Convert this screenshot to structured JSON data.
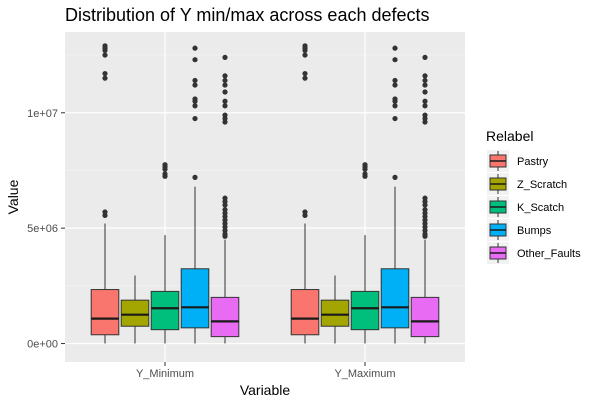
{
  "chart_data": {
    "type": "boxplot",
    "title": "Distribution of Y min/max across each defects",
    "xlabel": "Variable",
    "ylabel": "Value",
    "ylim": [
      -800000,
      13500000
    ],
    "categories": [
      "Y_Minimum",
      "Y_Maximum"
    ],
    "y_ticks": [
      {
        "value": 0,
        "label": "0e+00"
      },
      {
        "value": 5000000,
        "label": "5e+06"
      },
      {
        "value": 10000000,
        "label": "1e+07"
      }
    ],
    "legend": {
      "title": "Relabel",
      "position": "right"
    },
    "grid": true,
    "series": [
      {
        "name": "Pastry",
        "color": "#F8766D",
        "boxes": [
          {
            "min": 0,
            "q1": 380000,
            "median": 1080000,
            "q3": 2340000,
            "max": 5200000,
            "outliers": [
              5550000,
              5700000,
              11500000,
              11700000,
              12500000,
              12700000,
              12800000,
              12900000
            ]
          },
          {
            "min": 0,
            "q1": 380000,
            "median": 1080000,
            "q3": 2340000,
            "max": 5200000,
            "outliers": [
              5550000,
              5700000,
              11500000,
              11700000,
              12500000,
              12700000,
              12800000,
              12900000
            ]
          }
        ]
      },
      {
        "name": "Z_Scratch",
        "color": "#A3A500",
        "boxes": [
          {
            "min": 0,
            "q1": 750000,
            "median": 1250000,
            "q3": 1880000,
            "max": 2950000,
            "outliers": []
          },
          {
            "min": 0,
            "q1": 750000,
            "median": 1250000,
            "q3": 1880000,
            "max": 2950000,
            "outliers": []
          }
        ]
      },
      {
        "name": "K_Scatch",
        "color": "#00BF7D",
        "boxes": [
          {
            "min": 0,
            "q1": 600000,
            "median": 1530000,
            "q3": 2260000,
            "max": 4700000,
            "outliers": [
              7250000,
              7350000,
              7550000,
              7650000,
              7750000
            ]
          },
          {
            "min": 0,
            "q1": 600000,
            "median": 1530000,
            "q3": 2260000,
            "max": 4700000,
            "outliers": [
              7250000,
              7350000,
              7550000,
              7650000,
              7750000
            ]
          }
        ]
      },
      {
        "name": "Bumps",
        "color": "#00B0F6",
        "boxes": [
          {
            "min": 0,
            "q1": 680000,
            "median": 1570000,
            "q3": 3240000,
            "max": 6800000,
            "outliers": [
              7200000,
              9750000,
              10300000,
              10500000,
              10600000,
              11200000,
              11400000,
              12300000,
              12800000
            ]
          },
          {
            "min": 0,
            "q1": 680000,
            "median": 1570000,
            "q3": 3240000,
            "max": 6800000,
            "outliers": [
              7200000,
              9750000,
              10300000,
              10500000,
              10600000,
              11200000,
              11400000,
              12300000,
              12800000
            ]
          }
        ]
      },
      {
        "name": "Other_Faults",
        "color": "#E76BF3",
        "boxes": [
          {
            "min": 0,
            "q1": 300000,
            "median": 960000,
            "q3": 2000000,
            "max": 4500000,
            "outliers": [
              4650000,
              4750000,
              4900000,
              5050000,
              5200000,
              5350000,
              5500000,
              5650000,
              5800000,
              6000000,
              6150000,
              6300000,
              9600000,
              9750000,
              9900000,
              10300000,
              10500000,
              10900000,
              11200000,
              11400000,
              11600000,
              12400000
            ]
          },
          {
            "min": 0,
            "q1": 300000,
            "median": 960000,
            "q3": 2000000,
            "max": 4500000,
            "outliers": [
              4650000,
              4750000,
              4900000,
              5050000,
              5200000,
              5350000,
              5500000,
              5650000,
              5800000,
              6000000,
              6150000,
              6300000,
              9600000,
              9750000,
              9900000,
              10300000,
              10500000,
              10900000,
              11200000,
              11400000,
              11600000,
              12400000
            ]
          }
        ]
      }
    ]
  }
}
